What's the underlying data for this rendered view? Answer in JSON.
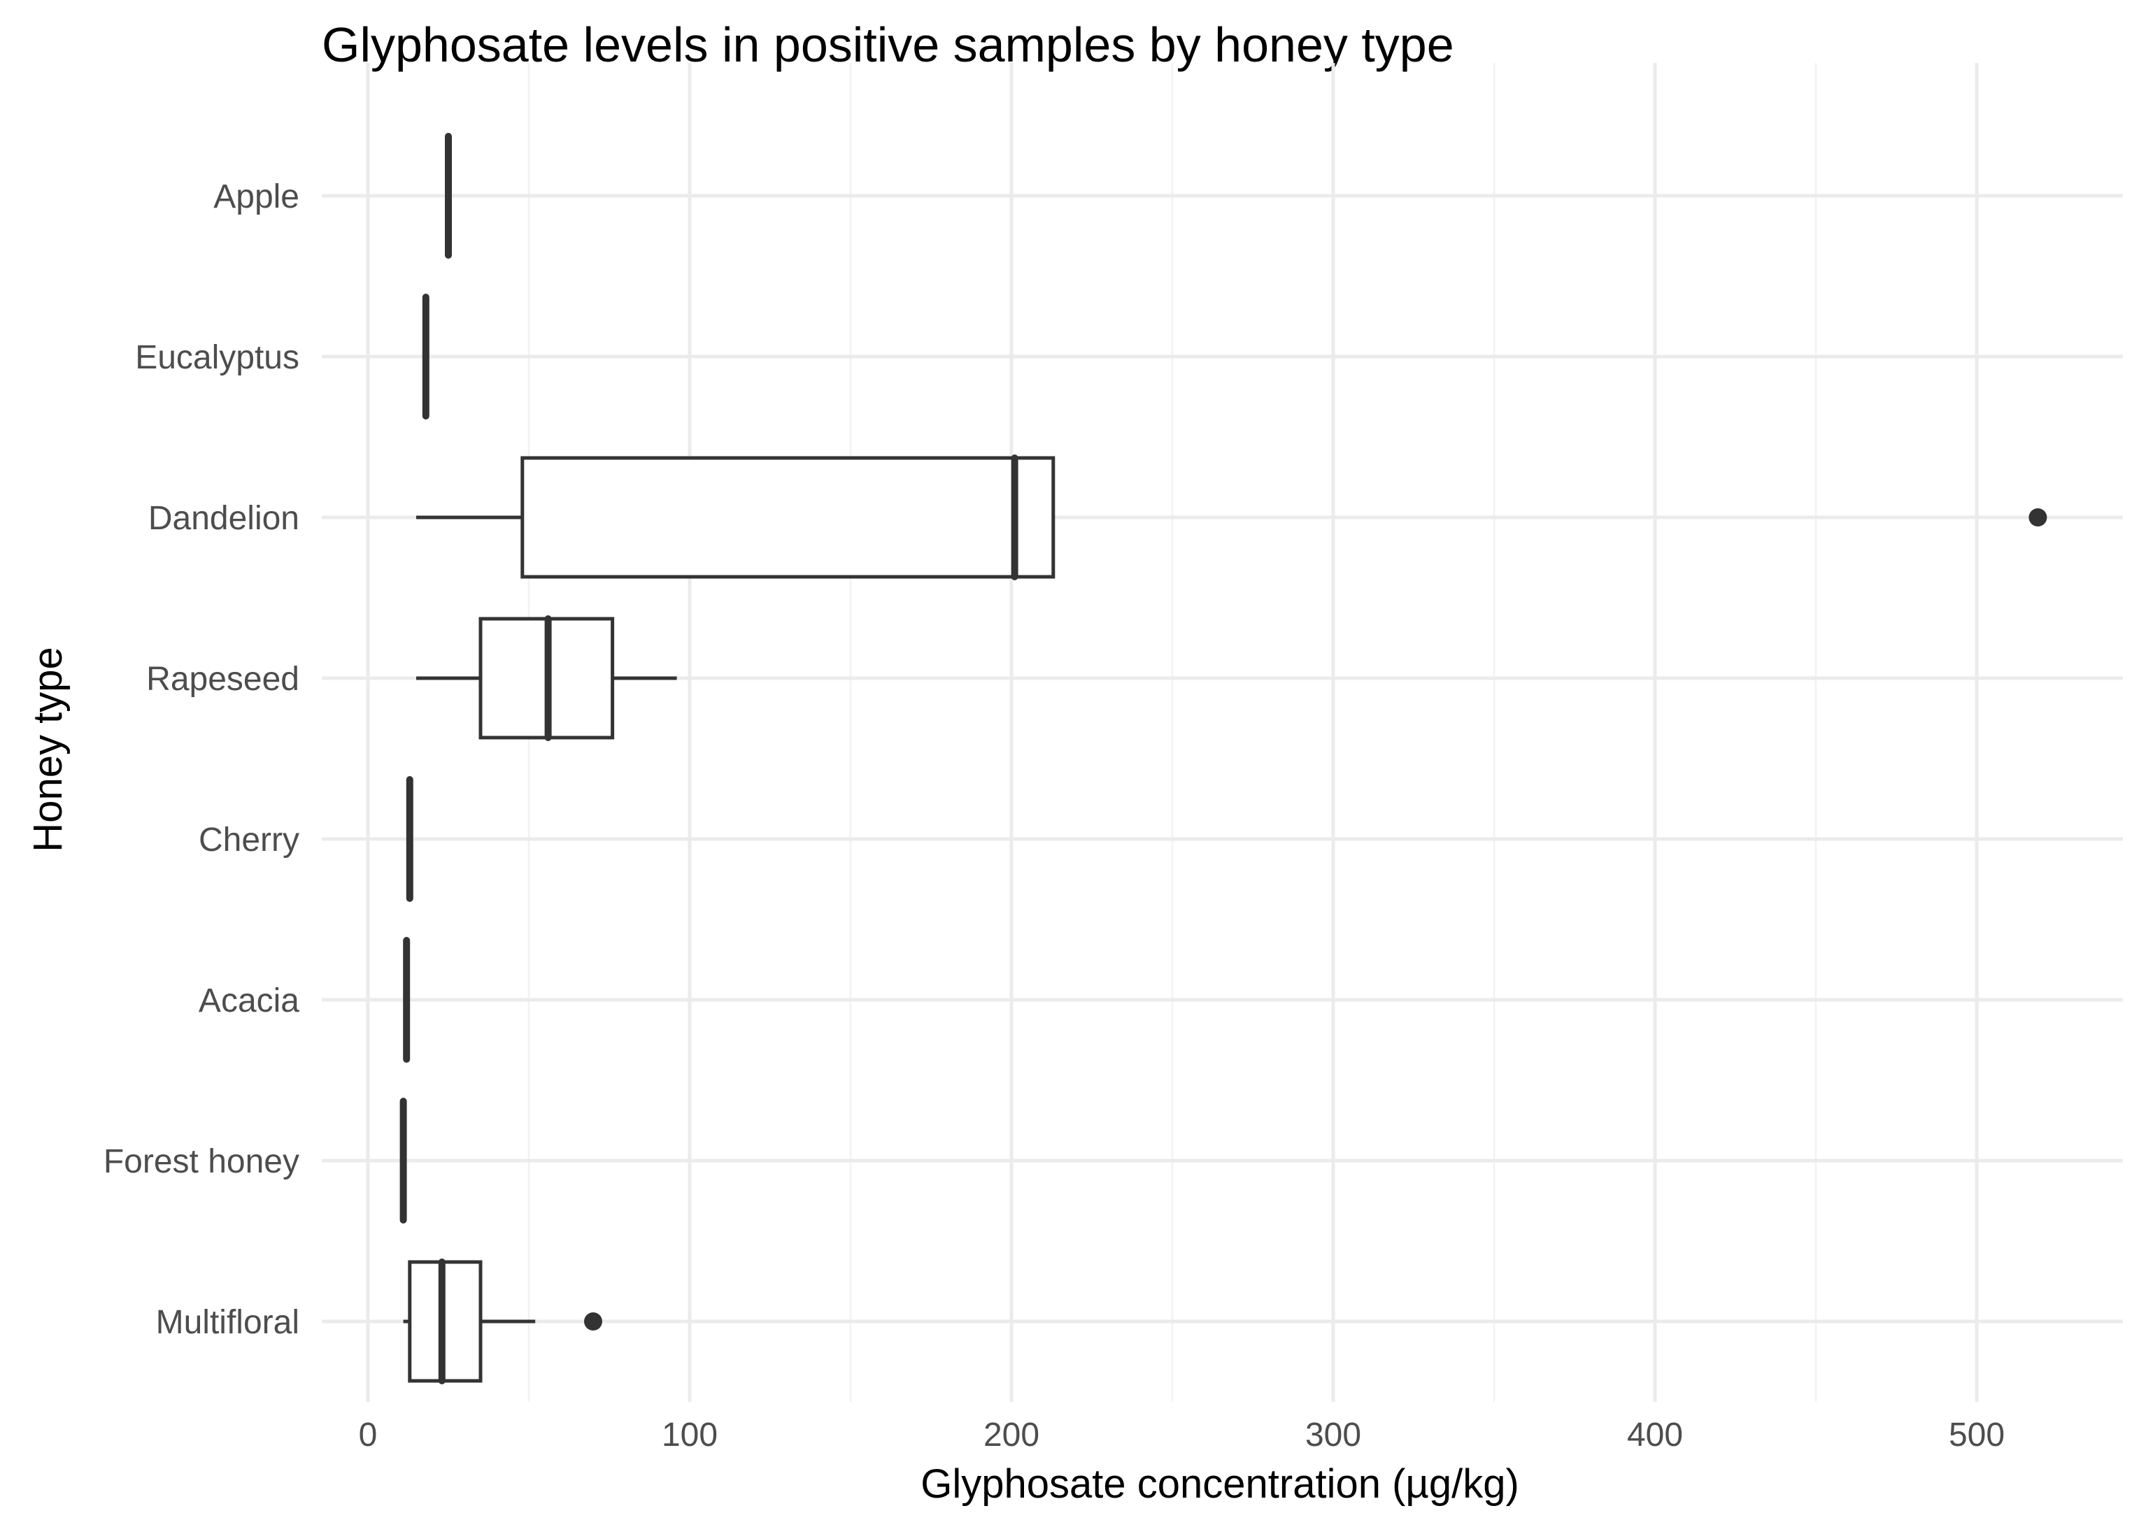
{
  "chart_data": {
    "type": "boxplot",
    "title": "Glyphosate levels in positive samples by honey type",
    "xlabel": "Glyphosate concentration (µg/kg)",
    "ylabel": "Honey type",
    "xlim": [
      -15,
      545
    ],
    "xticks": [
      0,
      100,
      200,
      300,
      400,
      500
    ],
    "xtick_labels": [
      "0",
      "100",
      "200",
      "300",
      "400",
      "500"
    ],
    "grid": true,
    "legend": "none",
    "colors": {
      "box": "#333333",
      "fill": "#ffffff",
      "grid": "#ebebeb",
      "tick_text": "#4d4d4d"
    },
    "categories": [
      "Apple",
      "Eucalyptus",
      "Dandelion",
      "Rapeseed",
      "Cherry",
      "Acacia",
      "Forest honey",
      "Multifloral"
    ],
    "boxes": [
      {
        "category": "Apple",
        "whisker_low": 25,
        "q1": 25,
        "median": 25,
        "q3": 25,
        "whisker_high": 25,
        "outliers": []
      },
      {
        "category": "Eucalyptus",
        "whisker_low": 18,
        "q1": 18,
        "median": 18,
        "q3": 18,
        "whisker_high": 18,
        "outliers": []
      },
      {
        "category": "Dandelion",
        "whisker_low": 15,
        "q1": 48,
        "median": 201,
        "q3": 213,
        "whisker_high": 213,
        "outliers": [
          519
        ]
      },
      {
        "category": "Rapeseed",
        "whisker_low": 15,
        "q1": 35,
        "median": 56,
        "q3": 76,
        "whisker_high": 96,
        "outliers": []
      },
      {
        "category": "Cherry",
        "whisker_low": 13,
        "q1": 13,
        "median": 13,
        "q3": 13,
        "whisker_high": 13,
        "outliers": []
      },
      {
        "category": "Acacia",
        "whisker_low": 12,
        "q1": 12,
        "median": 12,
        "q3": 12,
        "whisker_high": 12,
        "outliers": []
      },
      {
        "category": "Forest honey",
        "whisker_low": 11,
        "q1": 11,
        "median": 11,
        "q3": 11,
        "whisker_high": 11,
        "outliers": []
      },
      {
        "category": "Multifloral",
        "whisker_low": 11,
        "q1": 13,
        "median": 23,
        "q3": 35,
        "whisker_high": 52,
        "outliers": [
          70
        ]
      }
    ]
  }
}
